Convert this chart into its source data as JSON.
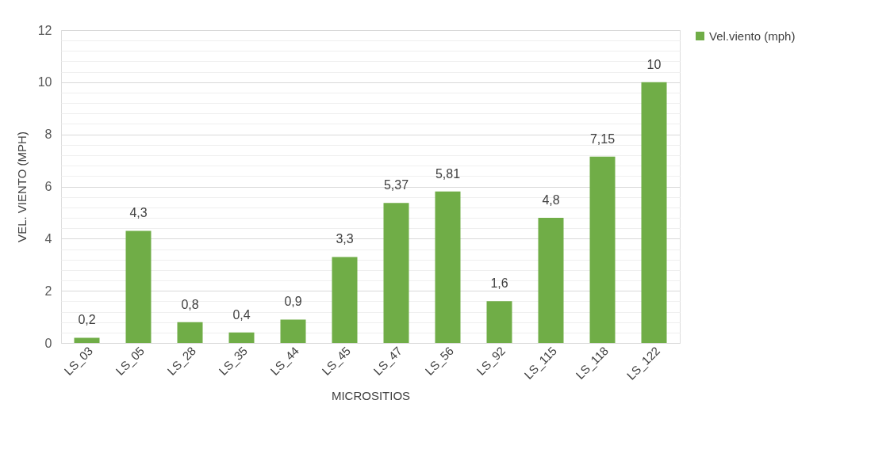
{
  "chart_data": {
    "type": "bar",
    "xlabel": "MICROSITIOS",
    "ylabel": "VEL. VIENTO (MPH)",
    "categories": [
      "LS_03",
      "LS_05",
      "LS_28",
      "LS_35",
      "LS_44",
      "LS_45",
      "LS_47",
      "LS_56",
      "LS_92",
      "LS_115",
      "LS_118",
      "LS_122"
    ],
    "series": [
      {
        "name": "Vel.viento (mph)",
        "color": "#70ad47",
        "values": [
          0.2,
          4.3,
          0.8,
          0.4,
          0.9,
          3.3,
          5.37,
          5.81,
          1.6,
          4.8,
          7.15,
          10
        ],
        "value_labels": [
          "0,2",
          "4,3",
          "0,8",
          "0,4",
          "0,9",
          "3,3",
          "5,37",
          "5,81",
          "1,6",
          "4,8",
          "7,15",
          "10"
        ]
      }
    ],
    "ylim": [
      0,
      12
    ],
    "yticks": [
      0,
      {
        "value": 0.4,
        "label": null
      },
      {
        "value": 0.8,
        "label": null
      },
      {
        "value": 1.2,
        "label": null
      },
      {
        "value": 1.6,
        "label": null
      },
      2,
      {
        "value": 2.4,
        "label": null
      },
      {
        "value": 2.8,
        "label": null
      },
      {
        "value": 3.2,
        "label": null
      },
      {
        "value": 3.6,
        "label": null
      },
      4,
      {
        "value": 4.4,
        "label": null
      },
      {
        "value": 4.8,
        "label": null
      },
      {
        "value": 5.2,
        "label": null
      },
      {
        "value": 5.6,
        "label": null
      },
      6,
      {
        "value": 6.4,
        "label": null
      },
      {
        "value": 6.8,
        "label": null
      },
      {
        "value": 7.2,
        "label": null
      },
      {
        "value": 7.6,
        "label": null
      },
      8,
      {
        "value": 8.4,
        "label": null
      },
      {
        "value": 8.8,
        "label": null
      },
      {
        "value": 9.2,
        "label": null
      },
      {
        "value": 9.6,
        "label": null
      },
      10,
      {
        "value": 10.4,
        "label": null
      },
      {
        "value": 10.8,
        "label": null
      },
      {
        "value": 11.2,
        "label": null
      },
      {
        "value": 11.6,
        "label": null
      },
      12
    ],
    "grid": "y",
    "legend": "right"
  }
}
